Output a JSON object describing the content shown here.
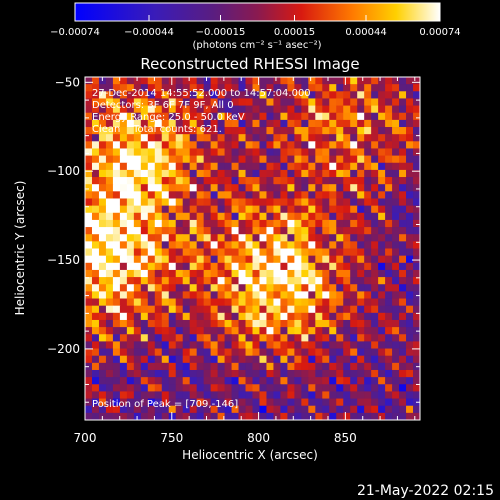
{
  "chart_data": {
    "type": "heatmap",
    "title": "Reconstructed RHESSI Image",
    "xlabel": "Heliocentric X (arcsec)",
    "ylabel": "Heliocentric Y (arcsec)",
    "xlim": [
      700,
      893
    ],
    "ylim": [
      -240,
      -47
    ],
    "x_ticks": [
      "700",
      "750",
      "800",
      "850"
    ],
    "y_ticks": [
      "-50",
      "-100",
      "-150",
      "-200"
    ],
    "colorbar": {
      "ticks": [
        "-0.00074",
        "-0.00044",
        "-0.00015",
        "0.00015",
        "0.00044",
        "0.00074"
      ],
      "range": [
        -0.00074,
        0.00074
      ],
      "unit": "(photons cm⁻² s⁻¹ asec⁻²)"
    },
    "info_lines": [
      "27-Dec-2014 14:55:52.000 to 14:57:04.000",
      "Detectors: 3F 6F 7F 9F, All 0",
      "Energy Range: 25.0 - 50.0 keV",
      "Clean    Total counts: 621."
    ],
    "peak_label": "Position of Peak = [709,-146]",
    "peak": [
      709,
      -146
    ],
    "sources": [
      {
        "x": 730,
        "y": -90,
        "relative_intensity": 0.85
      },
      {
        "x": 712,
        "y": -150,
        "relative_intensity": 0.9
      },
      {
        "x": 810,
        "y": -160,
        "relative_intensity": 1.0
      },
      {
        "x": 850,
        "y": -75,
        "relative_intensity": 0.55
      }
    ]
  },
  "footer_timestamp": "21-May-2022 02:15"
}
